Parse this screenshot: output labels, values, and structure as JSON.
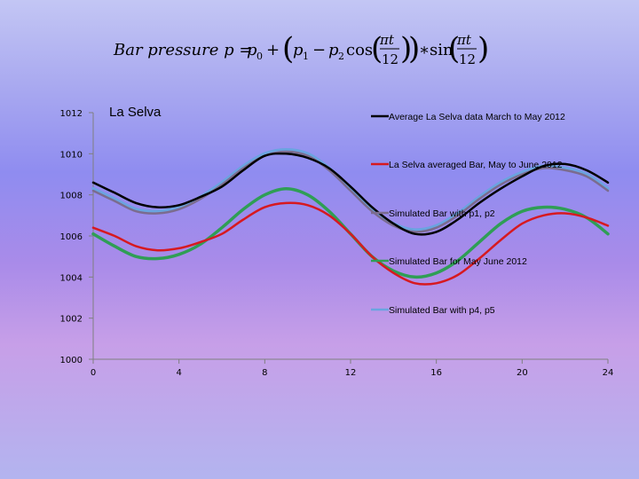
{
  "formula": {
    "lhs": "Bar pressure p =",
    "p0": "p",
    "p0_sub": "0",
    "plus": "+",
    "p1": "p",
    "p1_sub": "1",
    "minus": "−",
    "p2": "p",
    "p2_sub": "2",
    "cos": "cos",
    "times": "∗",
    "sin": "sin",
    "num": "πt",
    "den": "12"
  },
  "chart_data": {
    "type": "line",
    "title": "La Selva",
    "xlabel": "",
    "ylabel": "",
    "xlim": [
      0,
      24
    ],
    "ylim": [
      1000,
      1012
    ],
    "x_ticks": [
      "0",
      "4",
      "8",
      "12",
      "16",
      "20",
      "24"
    ],
    "y_ticks": [
      "1000",
      "1002",
      "1004",
      "1006",
      "1008",
      "1010",
      "1012"
    ],
    "grid": false,
    "legend_position": "right",
    "x": [
      0,
      1,
      2,
      3,
      4,
      5,
      6,
      7,
      8,
      9,
      10,
      11,
      12,
      13,
      14,
      15,
      16,
      17,
      18,
      19,
      20,
      21,
      22,
      23,
      24
    ],
    "series": [
      {
        "name": "Average La Selva data March to May 2012",
        "color": "#000000",
        "values": [
          1008.6,
          1008.1,
          1007.6,
          1007.4,
          1007.5,
          1007.9,
          1008.4,
          1009.2,
          1009.9,
          1010.0,
          1009.8,
          1009.3,
          1008.4,
          1007.4,
          1006.6,
          1006.1,
          1006.2,
          1006.8,
          1007.6,
          1008.3,
          1008.9,
          1009.4,
          1009.5,
          1009.2,
          1008.6
        ]
      },
      {
        "name": "La Selva averaged Bar, May to June 2012",
        "color": "#d71920",
        "values": [
          1006.4,
          1006.0,
          1005.5,
          1005.3,
          1005.4,
          1005.7,
          1006.1,
          1006.8,
          1007.4,
          1007.6,
          1007.5,
          1007.0,
          1006.1,
          1005.0,
          1004.2,
          1003.7,
          1003.7,
          1004.1,
          1004.9,
          1005.8,
          1006.6,
          1007.0,
          1007.1,
          1006.9,
          1006.5
        ]
      },
      {
        "name": "Simulated Bar with p1, p2",
        "color": "#7b6c8f",
        "values": [
          1008.2,
          1007.7,
          1007.2,
          1007.1,
          1007.3,
          1007.8,
          1008.5,
          1009.3,
          1009.9,
          1010.1,
          1009.9,
          1009.2,
          1008.2,
          1007.2,
          1006.5,
          1006.2,
          1006.4,
          1007.0,
          1007.8,
          1008.5,
          1009.0,
          1009.3,
          1009.2,
          1008.9,
          1008.2
        ]
      },
      {
        "name": "Simulated Bar for May June 2012",
        "color": "#2f9e55",
        "values": [
          1006.1,
          1005.5,
          1005.0,
          1004.9,
          1005.1,
          1005.6,
          1006.4,
          1007.3,
          1008.0,
          1008.3,
          1008.0,
          1007.2,
          1006.1,
          1005.0,
          1004.3,
          1004.0,
          1004.2,
          1004.8,
          1005.7,
          1006.6,
          1007.2,
          1007.4,
          1007.3,
          1006.9,
          1006.1
        ]
      },
      {
        "name": "Simulated Bar with p4, p5",
        "color": "#6aa4e0",
        "values": [
          1008.3,
          1007.8,
          1007.3,
          1007.2,
          1007.4,
          1007.9,
          1008.6,
          1009.4,
          1010.0,
          1010.2,
          1010.0,
          1009.3,
          1008.3,
          1007.3,
          1006.6,
          1006.3,
          1006.5,
          1007.1,
          1007.9,
          1008.6,
          1009.1,
          1009.4,
          1009.3,
          1009.0,
          1008.3
        ]
      }
    ]
  }
}
